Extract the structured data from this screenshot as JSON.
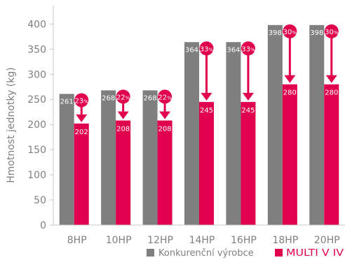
{
  "chart_data": {
    "type": "bar",
    "ylabel": "Hmotnost jednotky (kg)",
    "ylim": [
      0,
      420
    ],
    "yticks": [
      0,
      50,
      100,
      150,
      200,
      250,
      300,
      350,
      400
    ],
    "categories": [
      "8HP",
      "10HP",
      "12HP",
      "14HP",
      "16HP",
      "18HP",
      "20HP"
    ],
    "series": [
      {
        "name": "Konkurenční výrobce",
        "values": [
          261,
          268,
          268,
          364,
          364,
          398,
          398
        ],
        "color": "#7f7f7f"
      },
      {
        "name": "MULTI V IV",
        "values": [
          202,
          208,
          208,
          245,
          245,
          280,
          280
        ],
        "color": "#e0004d"
      }
    ],
    "reductions": [
      {
        "num": "23",
        "unit": "%"
      },
      {
        "num": "22",
        "unit": "%"
      },
      {
        "num": "22",
        "unit": "%"
      },
      {
        "num": "33",
        "unit": "%"
      },
      {
        "num": "33",
        "unit": "%"
      },
      {
        "num": "30",
        "unit": "%"
      },
      {
        "num": "30",
        "unit": "%"
      }
    ],
    "grid": false,
    "legend_position": "bottom-right"
  }
}
